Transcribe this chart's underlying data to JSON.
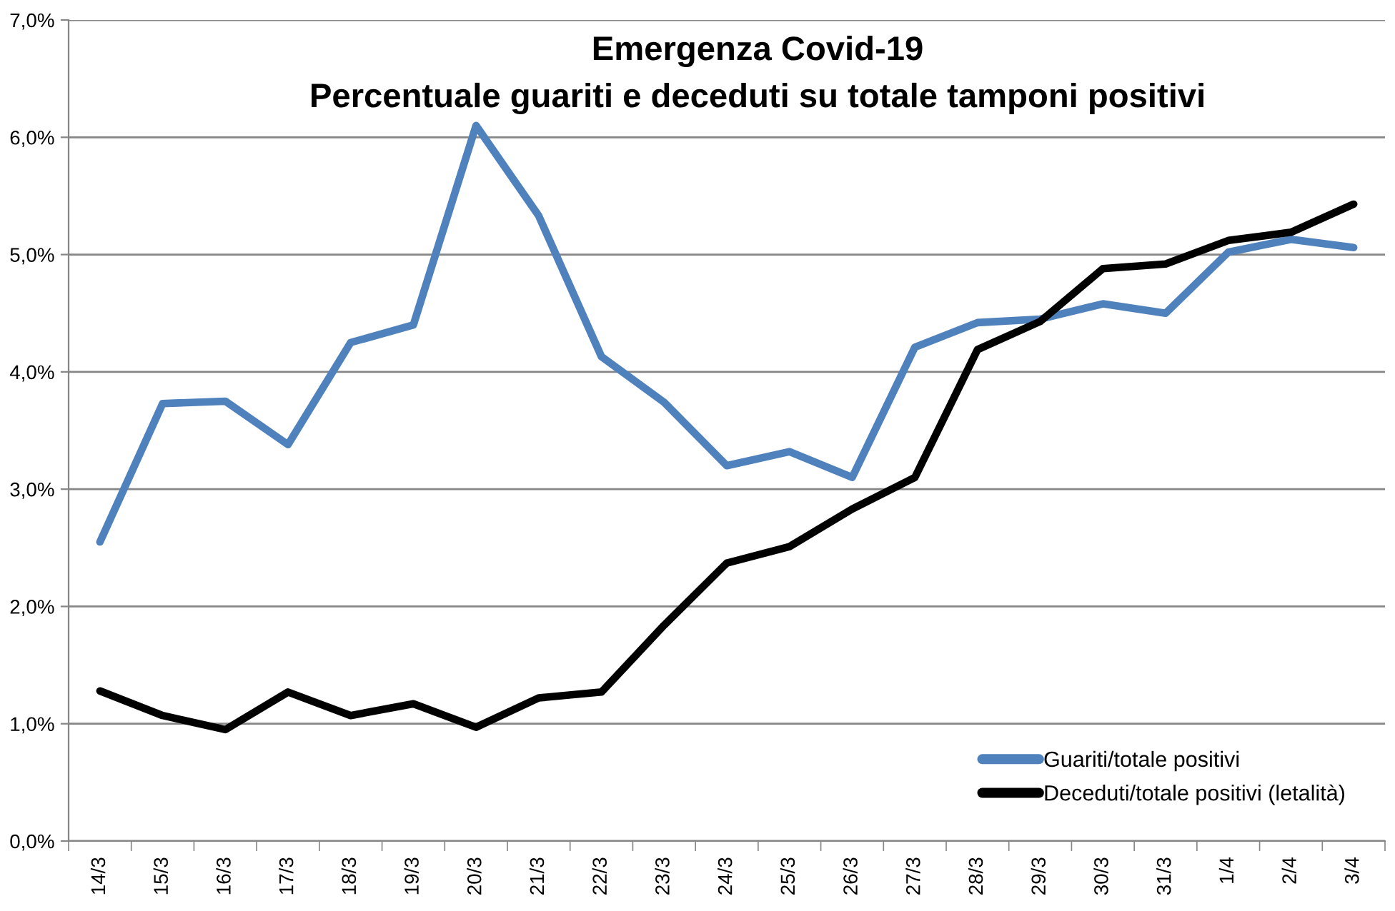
{
  "chart_data": {
    "type": "line",
    "title": "Emergenza Covid-19",
    "subtitle": "Percentuale guariti e deceduti su totale tamponi positivi",
    "categories": [
      "14/3",
      "15/3",
      "16/3",
      "17/3",
      "18/3",
      "19/3",
      "20/3",
      "21/3",
      "22/3",
      "23/3",
      "24/3",
      "25/3",
      "26/3",
      "27/3",
      "28/3",
      "29/3",
      "30/3",
      "31/3",
      "1/4",
      "2/4",
      "3/4"
    ],
    "series": [
      {
        "name": "Guariti/totale positivi",
        "color": "#4f81bd",
        "values": [
          2.55,
          3.73,
          3.75,
          3.38,
          4.25,
          4.4,
          6.1,
          5.33,
          4.13,
          3.74,
          3.2,
          3.32,
          3.1,
          4.21,
          4.42,
          4.45,
          4.58,
          4.5,
          5.02,
          5.13,
          5.06
        ]
      },
      {
        "name": "Deceduti/totale positivi (letalità)",
        "color": "#000000",
        "values": [
          1.28,
          1.07,
          0.95,
          1.27,
          1.07,
          1.17,
          0.97,
          1.22,
          1.27,
          1.84,
          2.37,
          2.51,
          2.83,
          3.1,
          4.19,
          4.43,
          4.88,
          4.92,
          5.12,
          5.19,
          5.43
        ]
      }
    ],
    "ylim": [
      0,
      7
    ],
    "yticks": [
      {
        "value": 0,
        "label": "0,0%"
      },
      {
        "value": 1,
        "label": "1,0%"
      },
      {
        "value": 2,
        "label": "2,0%"
      },
      {
        "value": 3,
        "label": "3,0%"
      },
      {
        "value": 4,
        "label": "4,0%"
      },
      {
        "value": 5,
        "label": "5,0%"
      },
      {
        "value": 6,
        "label": "6,0%"
      },
      {
        "value": 7,
        "label": "7,0%"
      }
    ],
    "grid": "y",
    "legend": "bottom right",
    "marker": "none",
    "line_style": "solid"
  }
}
